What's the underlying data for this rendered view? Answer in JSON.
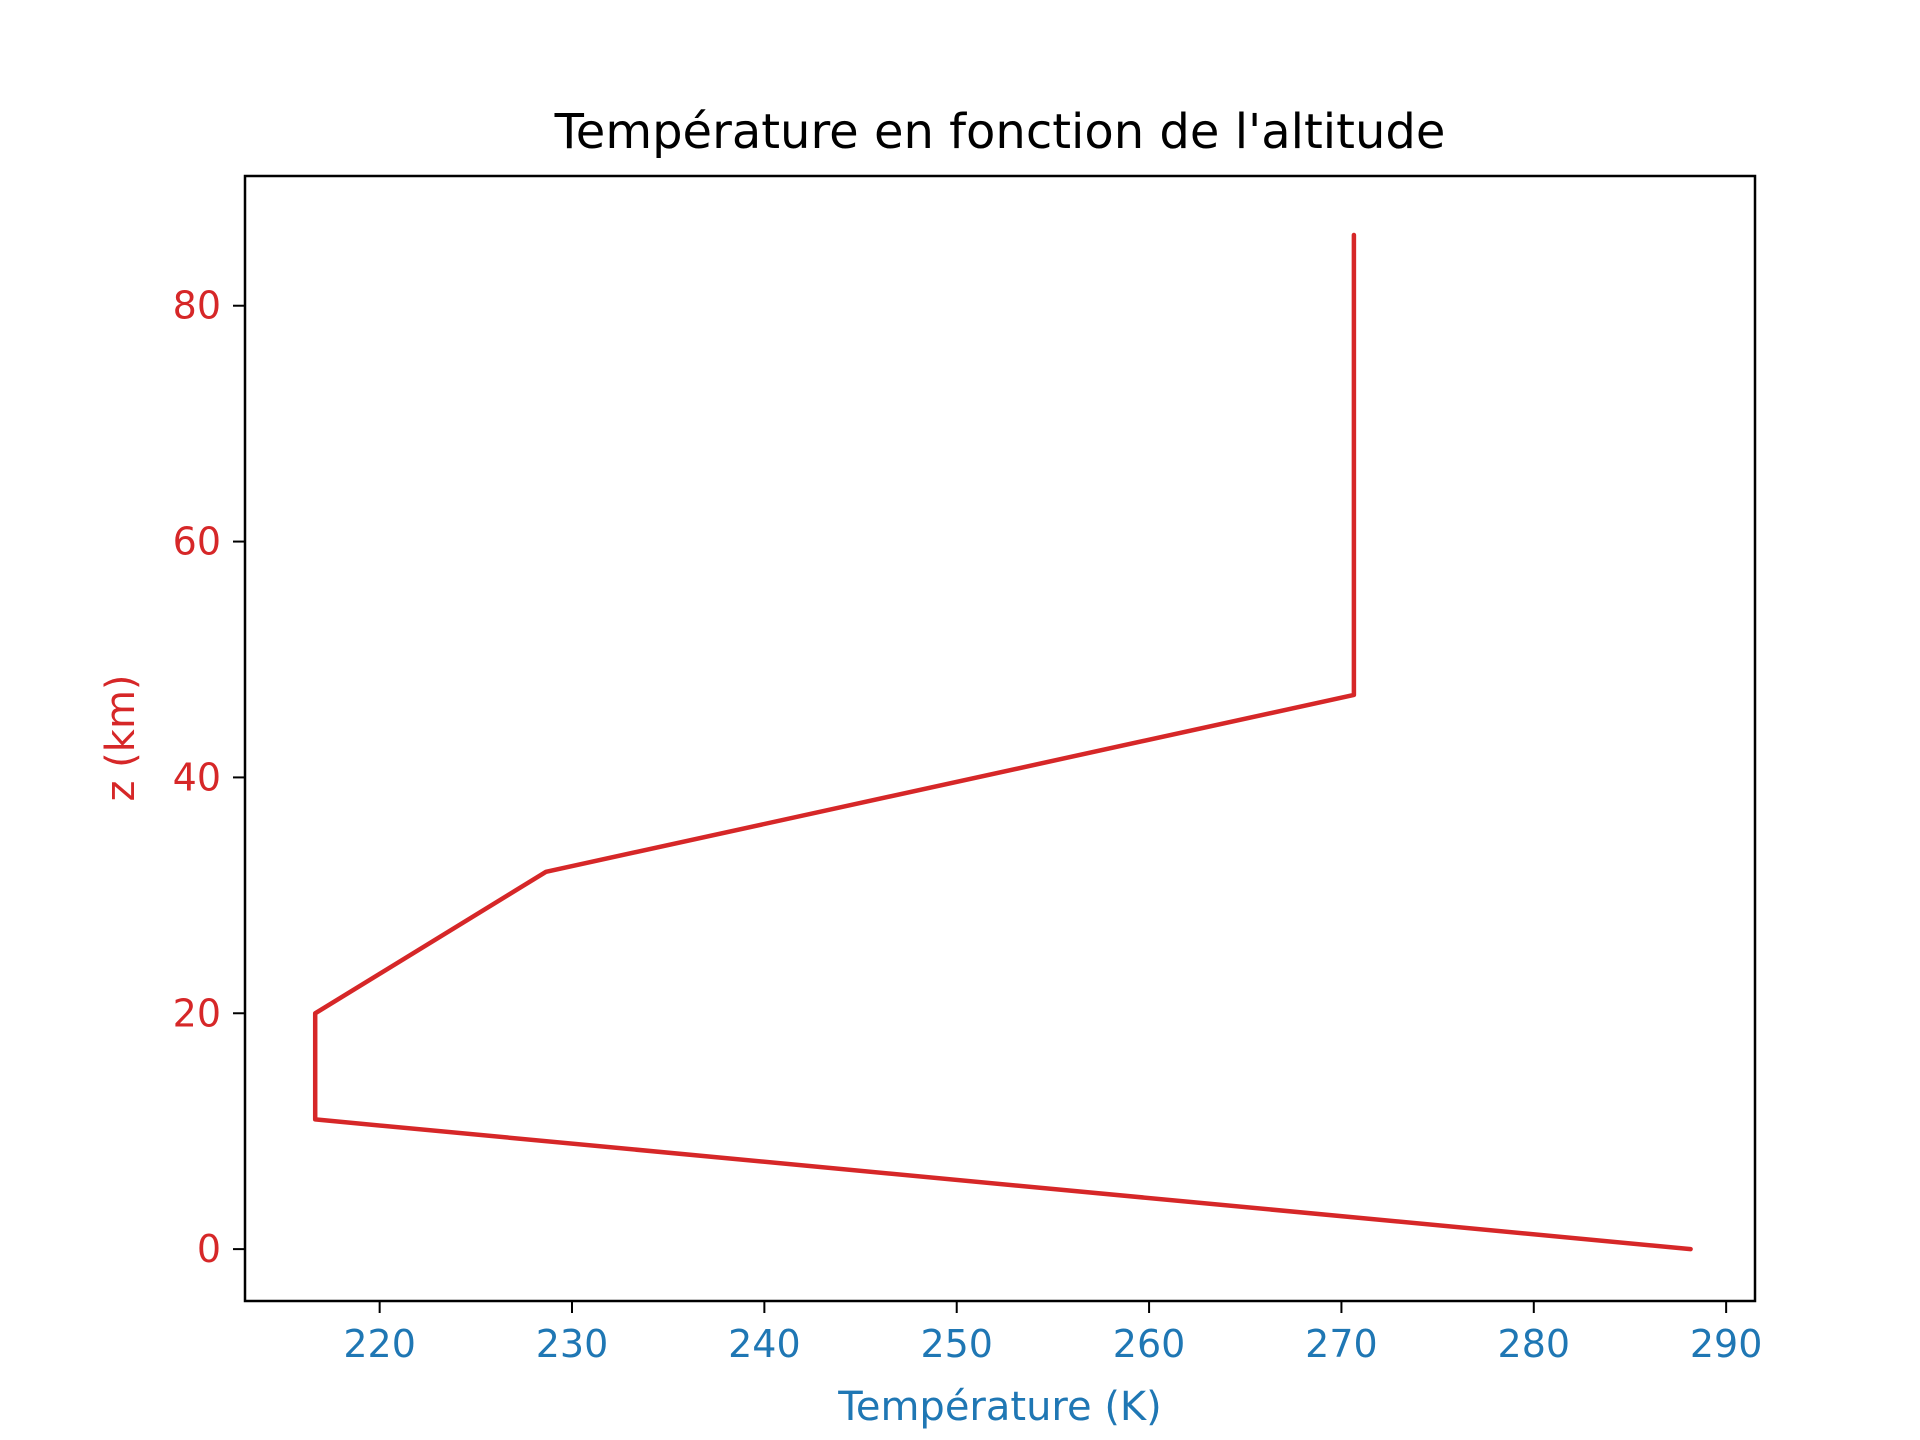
{
  "chart_data": {
    "type": "line",
    "title": "Température en fonction de l'altitude",
    "xlabel": "Température (K)",
    "ylabel": "z (km)",
    "xlim": [
      213,
      291.5
    ],
    "ylim": [
      -4.4,
      91
    ],
    "xticks": [
      220,
      230,
      240,
      250,
      260,
      270,
      280,
      290
    ],
    "yticks": [
      0,
      20,
      40,
      60,
      80
    ],
    "grid": false,
    "series": [
      {
        "x": [
          288.15,
          216.65,
          216.65,
          228.65,
          270.65,
          270.65
        ],
        "y": [
          0,
          11,
          20,
          32,
          47,
          86
        ],
        "color": "#d62728"
      }
    ],
    "colors": {
      "x_axis": "#1f77b4",
      "y_axis": "#d62728",
      "frame": "#000000"
    }
  }
}
